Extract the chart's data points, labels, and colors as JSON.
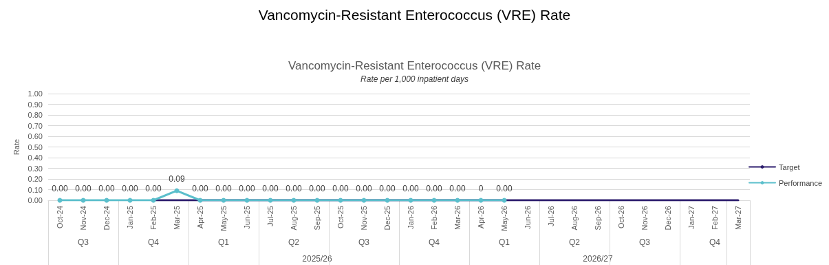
{
  "chart_data": {
    "type": "line",
    "title": "Vancomycin-Resistant Enterococcus (VRE) Rate",
    "subtitle": "Rate per 1,000 inpatient days",
    "ylabel": "Rate",
    "categories": [
      "Oct-24",
      "Nov-24",
      "Dec-24",
      "Jan-25",
      "Feb-25",
      "Mar-25",
      "Apr-25",
      "May-25",
      "Jun-25",
      "Jul-25",
      "Aug-25",
      "Sep-25",
      "Oct-25",
      "Nov-25",
      "Dec-25",
      "Jan-26",
      "Feb-26",
      "Mar-26",
      "Apr-26",
      "May-26",
      "Jun-26",
      "Jul-26",
      "Aug-26",
      "Sep-26",
      "Oct-26",
      "Nov-26",
      "Dec-26",
      "Jan-27",
      "Feb-27",
      "Mar-27"
    ],
    "series": [
      {
        "name": "Target",
        "color": "#2e1f6e",
        "marker": "none",
        "values": [
          null,
          null,
          null,
          null,
          0,
          0,
          0,
          0,
          0,
          0,
          0,
          0,
          0,
          0,
          0,
          0,
          0,
          0,
          0,
          0,
          0,
          0,
          0,
          0,
          0,
          0,
          0,
          0,
          0,
          0
        ]
      },
      {
        "name": "Performance",
        "color": "#5bbfcc",
        "marker": "circle",
        "values": [
          0,
          0,
          0,
          0,
          0,
          0.09,
          0,
          0,
          0,
          0,
          0,
          0,
          0,
          0,
          0,
          0,
          0,
          0,
          0,
          0,
          null,
          null,
          null,
          null,
          null,
          null,
          null,
          null,
          null,
          null
        ],
        "value_labels": [
          "0.00",
          "0.00",
          "0.00",
          "0.00",
          "0.00",
          "0.09",
          "0.00",
          "0.00",
          "0.00",
          "0.00",
          "0.00",
          "0.00",
          "0.00",
          "0.00",
          "0.00",
          "0.00",
          "0.00",
          "0.00",
          "0",
          "0.00",
          null,
          null,
          null,
          null,
          null,
          null,
          null,
          null,
          null,
          null
        ]
      }
    ],
    "ylim": [
      0,
      1
    ],
    "yticks": [
      {
        "value": 0,
        "label": "0.00"
      },
      {
        "value": 0.1,
        "label": "0.10"
      },
      {
        "value": 0.2,
        "label": "0.20"
      },
      {
        "value": 0.3,
        "label": "0.30"
      },
      {
        "value": 0.4,
        "label": "0.40"
      },
      {
        "value": 0.5,
        "label": "0.50"
      },
      {
        "value": 0.6,
        "label": "0.60"
      },
      {
        "value": 0.7,
        "label": "0.70"
      },
      {
        "value": 0.8,
        "label": "0.80"
      },
      {
        "value": 0.9,
        "label": "0.90"
      },
      {
        "value": 1,
        "label": "1.00"
      }
    ],
    "grid": "y",
    "legend": "right",
    "line_style": "solid",
    "annotations": [
      "Vancomycin-Resistant Enterococcus (VRE) Rate",
      "Q3",
      "Q4",
      "Q1",
      "Q2",
      "Q3",
      "Q4",
      "Q1",
      "Q2",
      "Q3",
      "Q4",
      "2025/26",
      "2026/27"
    ]
  }
}
